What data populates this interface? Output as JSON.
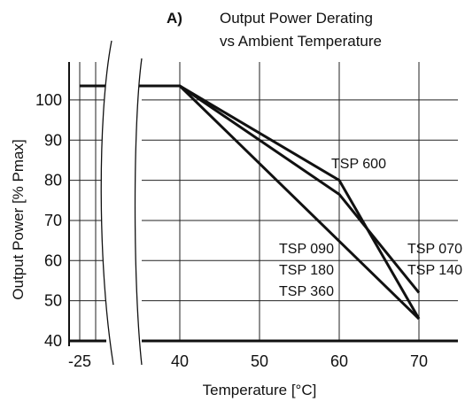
{
  "chart_data": {
    "type": "line",
    "panel_label": "A)",
    "title": [
      "Output Power Derating",
      "vs Ambient Temperature"
    ],
    "xlabel": "Temperature [°C]",
    "ylabel": "Output Power [% Pmax]",
    "x_ticks": [
      "-25",
      "40",
      "50",
      "60",
      "70"
    ],
    "y_ticks": [
      100,
      90,
      80,
      70,
      60,
      50,
      40
    ],
    "xlim": [
      40,
      75
    ],
    "ylim": [
      40,
      105
    ],
    "axis_break": "between -25 and 40",
    "grid": true,
    "series": [
      {
        "labels": [
          "TSP 600"
        ],
        "x": [
          -25,
          40,
          60,
          70
        ],
        "y": [
          103.5,
          103.5,
          80,
          45.5
        ]
      },
      {
        "labels": [
          "TSP 070",
          "TSP 140"
        ],
        "x": [
          -25,
          40,
          60,
          70
        ],
        "y": [
          103.5,
          103.5,
          76.5,
          52
        ]
      },
      {
        "labels": [
          "TSP 090",
          "TSP 180",
          "TSP 360"
        ],
        "x": [
          -25,
          40,
          70
        ],
        "y": [
          103.5,
          103.5,
          45.5
        ]
      }
    ]
  }
}
